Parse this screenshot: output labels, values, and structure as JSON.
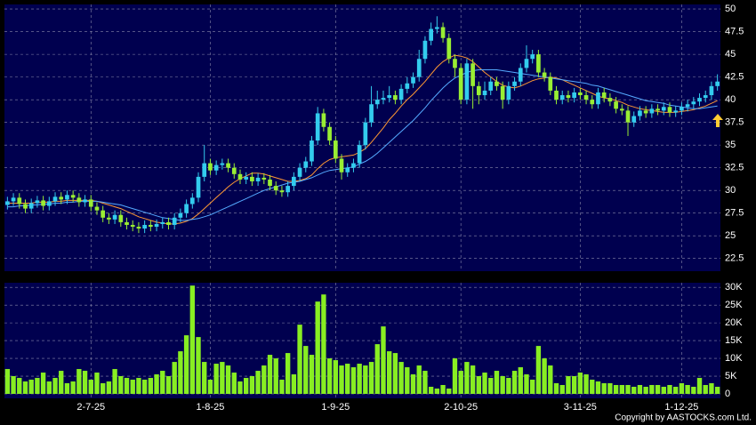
{
  "chart_data": {
    "type": "candlestick",
    "categories": [
      null,
      null,
      null,
      null,
      null,
      null,
      null,
      null,
      null,
      null,
      null,
      null,
      null,
      null,
      "2-7-25",
      null,
      null,
      null,
      null,
      null,
      null,
      null,
      null,
      null,
      null,
      null,
      null,
      null,
      null,
      null,
      null,
      null,
      null,
      null,
      "1-8-25",
      null,
      null,
      null,
      null,
      null,
      null,
      null,
      null,
      null,
      null,
      null,
      null,
      null,
      null,
      null,
      null,
      null,
      null,
      null,
      null,
      "1-9-25",
      null,
      null,
      null,
      null,
      null,
      null,
      null,
      null,
      null,
      null,
      null,
      null,
      null,
      null,
      null,
      null,
      null,
      null,
      null,
      null,
      "2-10-25",
      null,
      null,
      null,
      null,
      null,
      null,
      null,
      null,
      null,
      null,
      null,
      null,
      null,
      null,
      null,
      null,
      null,
      null,
      null,
      "3-11-25",
      null,
      null,
      null,
      null,
      null,
      null,
      null,
      null,
      null,
      null,
      null,
      null,
      null,
      null,
      null,
      null,
      "1-12-25",
      null,
      null,
      null,
      null,
      null,
      null
    ],
    "open": [
      28.4,
      28.8,
      29.2,
      28.5,
      28.0,
      28.6,
      28.9,
      28.3,
      28.8,
      29.3,
      29.0,
      29.5,
      29.2,
      28.7,
      29.0,
      28.2,
      27.8,
      27.0,
      26.8,
      27.3,
      26.5,
      26.2,
      26.0,
      25.8,
      26.2,
      26.0,
      26.3,
      26.5,
      26.2,
      27.0,
      27.5,
      28.5,
      29.2,
      31.5,
      33.0,
      32.2,
      32.8,
      33.0,
      32.5,
      31.8,
      31.2,
      31.5,
      31.0,
      31.4,
      31.2,
      30.5,
      30.0,
      29.8,
      30.5,
      31.5,
      32.5,
      33.2,
      35.5,
      38.5,
      37.0,
      35.5,
      33.5,
      32.0,
      32.5,
      33.0,
      35.0,
      37.5,
      39.5,
      40.0,
      40.2,
      40.5,
      40.0,
      41.2,
      41.8,
      42.5,
      44.5,
      46.5,
      47.8,
      48.0,
      46.8,
      44.5,
      43.5,
      40.0,
      44.0,
      41.5,
      40.5,
      41.0,
      42.0,
      41.5,
      40.0,
      41.5,
      42.0,
      43.5,
      44.5,
      45.0,
      43.0,
      42.5,
      41.0,
      40.0,
      40.5,
      40.2,
      40.8,
      40.5,
      40.0,
      39.5,
      40.8,
      40.2,
      39.8,
      39.0,
      38.8,
      37.5,
      38.2,
      38.8,
      38.5,
      39.0,
      38.8,
      39.2,
      38.6,
      38.8,
      39.2,
      39.5,
      39.8,
      40.2,
      40.5,
      41.5
    ],
    "high": [
      29.3,
      29.7,
      29.7,
      29.0,
      29.1,
      29.4,
      29.4,
      29.3,
      29.8,
      29.8,
      30.0,
      30.0,
      29.7,
      29.5,
      29.5,
      28.7,
      28.3,
      27.5,
      27.8,
      27.8,
      27.0,
      26.7,
      26.5,
      26.7,
      26.7,
      26.8,
      27.0,
      27.0,
      27.5,
      28.0,
      29.0,
      29.7,
      32.0,
      35.0,
      33.5,
      33.3,
      33.5,
      33.5,
      33.0,
      32.3,
      32.0,
      32.0,
      31.9,
      31.9,
      31.7,
      31.0,
      30.5,
      31.0,
      32.0,
      33.0,
      33.7,
      36.0,
      39.2,
      39.0,
      37.5,
      36.0,
      34.0,
      33.0,
      33.5,
      35.5,
      38.0,
      41.5,
      41.0,
      41.0,
      41.5,
      41.0,
      41.7,
      42.5,
      43.0,
      45.5,
      47.0,
      48.5,
      49.2,
      48.5,
      47.3,
      45.0,
      44.0,
      44.5,
      44.5,
      42.0,
      42.0,
      42.5,
      42.5,
      42.0,
      42.0,
      42.5,
      44.0,
      46.0,
      45.5,
      45.5,
      43.5,
      43.0,
      41.5,
      41.0,
      41.0,
      41.3,
      41.3,
      41.0,
      40.5,
      41.3,
      41.3,
      40.7,
      40.3,
      39.5,
      39.3,
      38.7,
      39.3,
      39.3,
      39.5,
      39.5,
      39.7,
      39.7,
      39.3,
      39.7,
      40.0,
      40.3,
      40.7,
      41.0,
      42.0,
      42.8
    ],
    "low": [
      27.9,
      28.3,
      28.0,
      27.5,
      27.5,
      28.1,
      27.8,
      27.8,
      28.3,
      28.5,
      28.5,
      28.7,
      28.2,
      28.2,
      27.7,
      27.3,
      26.5,
      26.3,
      26.3,
      26.0,
      25.7,
      25.5,
      25.3,
      25.3,
      25.5,
      25.5,
      25.8,
      25.7,
      25.7,
      26.5,
      27.0,
      28.0,
      28.7,
      31.0,
      31.7,
      31.7,
      32.3,
      32.0,
      31.3,
      30.7,
      30.7,
      30.5,
      30.5,
      30.7,
      30.0,
      29.5,
      29.3,
      29.3,
      30.0,
      31.0,
      32.0,
      32.7,
      35.0,
      36.5,
      35.0,
      33.0,
      31.2,
      31.5,
      32.0,
      32.5,
      34.5,
      37.0,
      39.0,
      39.5,
      39.7,
      39.5,
      39.5,
      40.7,
      41.3,
      42.0,
      44.0,
      46.0,
      47.3,
      46.3,
      44.0,
      42.5,
      39.5,
      39.5,
      39.0,
      39.5,
      40.0,
      40.5,
      41.0,
      39.0,
      39.5,
      41.0,
      41.5,
      43.0,
      44.0,
      42.5,
      42.0,
      40.5,
      39.5,
      39.5,
      39.7,
      39.7,
      40.0,
      39.5,
      39.0,
      39.0,
      39.7,
      39.3,
      38.5,
      38.3,
      36.0,
      37.0,
      37.7,
      38.0,
      38.0,
      38.3,
      38.3,
      38.1,
      38.1,
      38.3,
      38.7,
      39.0,
      39.3,
      39.7,
      40.0,
      41.0
    ],
    "close": [
      28.8,
      29.2,
      28.5,
      28.0,
      28.6,
      28.9,
      28.3,
      28.8,
      29.3,
      29.0,
      29.5,
      29.2,
      28.7,
      29.0,
      28.2,
      27.8,
      27.0,
      26.8,
      27.3,
      26.5,
      26.2,
      26.0,
      25.8,
      26.2,
      26.0,
      26.3,
      26.5,
      26.2,
      27.0,
      27.5,
      28.5,
      29.2,
      31.5,
      33.0,
      32.2,
      32.8,
      33.0,
      32.5,
      31.8,
      31.2,
      31.5,
      31.0,
      31.4,
      31.2,
      30.5,
      30.0,
      29.8,
      30.5,
      31.5,
      32.5,
      33.2,
      35.5,
      38.5,
      37.0,
      35.5,
      33.5,
      32.0,
      32.5,
      33.0,
      35.0,
      37.5,
      39.5,
      40.0,
      40.2,
      40.5,
      40.0,
      41.2,
      41.8,
      42.5,
      44.5,
      46.5,
      47.8,
      48.0,
      46.8,
      44.5,
      43.5,
      40.0,
      44.0,
      41.5,
      40.5,
      41.0,
      42.0,
      41.5,
      40.0,
      41.5,
      42.0,
      43.5,
      44.5,
      45.0,
      43.0,
      42.5,
      41.0,
      40.0,
      40.5,
      40.2,
      40.8,
      40.5,
      40.0,
      39.5,
      40.8,
      40.2,
      39.8,
      39.0,
      38.8,
      37.5,
      38.2,
      38.8,
      38.5,
      39.0,
      38.8,
      39.2,
      38.6,
      38.8,
      39.2,
      39.5,
      39.8,
      40.2,
      40.5,
      41.5,
      42.0
    ],
    "up_color": "#33ccee",
    "down_color": "#99ee33",
    "moving_averages": [
      {
        "color": "#ff9933",
        "values": [
          28.6,
          28.6,
          28.6,
          28.6,
          28.6,
          28.7,
          28.7,
          28.7,
          28.8,
          28.8,
          28.9,
          28.9,
          28.9,
          28.9,
          28.9,
          28.8,
          28.6,
          28.4,
          28.2,
          28.0,
          27.7,
          27.4,
          27.1,
          26.9,
          26.7,
          26.5,
          26.4,
          26.3,
          26.3,
          26.4,
          26.6,
          26.9,
          27.4,
          28.0,
          28.6,
          29.2,
          29.8,
          30.4,
          30.9,
          31.3,
          31.6,
          31.9,
          31.9,
          31.8,
          31.6,
          31.4,
          31.2,
          31.0,
          31.0,
          31.1,
          31.3,
          31.7,
          32.4,
          33.0,
          33.4,
          33.6,
          33.7,
          33.8,
          33.9,
          34.2,
          34.6,
          35.3,
          36.1,
          36.9,
          37.8,
          38.5,
          39.3,
          40.0,
          40.6,
          41.3,
          42.0,
          42.8,
          43.6,
          44.2,
          44.6,
          44.9,
          44.8,
          44.6,
          44.2,
          43.6,
          43.0,
          42.5,
          42.0,
          41.6,
          41.4,
          41.3,
          41.5,
          41.8,
          42.1,
          42.3,
          42.4,
          42.5,
          42.4,
          42.2,
          41.9,
          41.6,
          41.3,
          41.0,
          40.7,
          40.4,
          40.2,
          40.1,
          39.9,
          39.7,
          39.4,
          39.2,
          39.0,
          38.9,
          38.8,
          38.7,
          38.6,
          38.6,
          38.6,
          38.7,
          38.8,
          38.9,
          39.1,
          39.3,
          39.6,
          39.9
        ]
      },
      {
        "color": "#55aaff",
        "values": [
          28.2,
          28.2,
          28.3,
          28.3,
          28.4,
          28.4,
          28.5,
          28.5,
          28.6,
          28.6,
          28.7,
          28.7,
          28.8,
          28.8,
          28.8,
          28.8,
          28.7,
          28.6,
          28.5,
          28.4,
          28.2,
          28.0,
          27.8,
          27.6,
          27.4,
          27.2,
          27.0,
          26.9,
          26.8,
          26.7,
          26.7,
          26.8,
          26.9,
          27.1,
          27.3,
          27.6,
          27.9,
          28.2,
          28.5,
          28.8,
          29.1,
          29.4,
          29.7,
          30.0,
          30.2,
          30.4,
          30.6,
          30.8,
          30.9,
          31.0,
          31.2,
          31.4,
          31.7,
          32.0,
          32.2,
          32.3,
          32.4,
          32.5,
          32.6,
          32.9,
          33.2,
          33.6,
          34.1,
          34.7,
          35.3,
          35.9,
          36.5,
          37.1,
          37.7,
          38.4,
          39.1,
          39.9,
          40.6,
          41.3,
          41.9,
          42.4,
          42.7,
          43.0,
          43.2,
          43.3,
          43.3,
          43.3,
          43.3,
          43.2,
          43.1,
          43.0,
          42.9,
          42.8,
          42.7,
          42.6,
          42.5,
          42.4,
          42.3,
          42.2,
          42.1,
          42.0,
          41.9,
          41.8,
          41.6,
          41.5,
          41.3,
          41.1,
          40.9,
          40.7,
          40.5,
          40.3,
          40.1,
          39.9,
          39.8,
          39.7,
          39.6,
          39.4,
          39.3,
          39.2,
          39.1,
          39.0,
          39.0,
          39.1,
          39.2,
          39.3
        ]
      }
    ],
    "ylim": [
      21.1,
      50.5
    ],
    "yticks": [
      22.5,
      25,
      27.5,
      30,
      32.5,
      35,
      37.5,
      40,
      42.5,
      45,
      47.5,
      50
    ],
    "grid": true,
    "volume": {
      "type": "bar",
      "color": "#88ee22",
      "values": [
        7000,
        5000,
        4500,
        3500,
        4000,
        4500,
        6000,
        3500,
        4500,
        6500,
        3000,
        3500,
        7000,
        6500,
        4000,
        6000,
        3000,
        3500,
        7000,
        5000,
        4500,
        4000,
        4500,
        4000,
        4500,
        5500,
        6500,
        5000,
        9000,
        12000,
        16500,
        30500,
        16000,
        9000,
        4000,
        8500,
        9000,
        8000,
        6000,
        3500,
        4500,
        5000,
        6500,
        8000,
        11000,
        10000,
        4000,
        11500,
        5500,
        19500,
        13500,
        11000,
        26000,
        28000,
        10000,
        9500,
        8000,
        8500,
        7500,
        8500,
        8000,
        9000,
        14000,
        19000,
        12000,
        11500,
        9000,
        7500,
        5500,
        8000,
        6500,
        2000,
        1500,
        2500,
        1500,
        10000,
        6500,
        9000,
        8000,
        5000,
        6000,
        4500,
        6500,
        5000,
        4500,
        6500,
        7500,
        5500,
        4000,
        13500,
        10000,
        8000,
        3000,
        2500,
        5000,
        5000,
        6000,
        5500,
        4000,
        3500,
        3000,
        3000,
        2500,
        2500,
        2500,
        2000,
        2500,
        2000,
        2500,
        2500,
        2000,
        2500,
        2000,
        3000,
        2500,
        2000,
        4500,
        2500,
        3000,
        2000
      ],
      "ylim": [
        0,
        31300
      ],
      "yticks": [
        0,
        {
          "value": 5000,
          "label": "5K"
        },
        {
          "value": 10000,
          "label": "10K"
        },
        {
          "value": 15000,
          "label": "15K"
        },
        {
          "value": 20000,
          "label": "20K"
        },
        {
          "value": 25000,
          "label": "25K"
        },
        {
          "value": 30000,
          "label": "30K"
        }
      ]
    },
    "copyright": "Copyright by AASTOCKS.com Ltd."
  }
}
